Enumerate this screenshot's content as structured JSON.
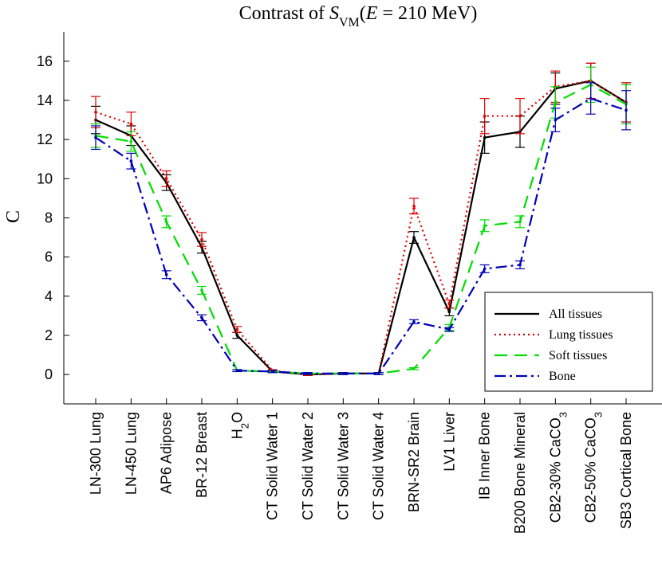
{
  "chart_data": {
    "type": "line",
    "title": {
      "prefix": "Contrast of ",
      "symbol": "S",
      "subscript": "VM",
      "open": "(",
      "var": "E",
      "eq": " = 210 MeV)"
    },
    "xlabel": "",
    "ylabel": "C",
    "ylim": [
      -1.5,
      17.5
    ],
    "yticks": [
      0,
      2,
      4,
      6,
      8,
      10,
      12,
      14,
      16
    ],
    "grid": false,
    "legend_position": "bottom-right",
    "categories": [
      {
        "text": "LN-300 Lung"
      },
      {
        "text": "LN-450 Lung"
      },
      {
        "text": "AP6 Adipose"
      },
      {
        "text": "BR-12 Breast"
      },
      {
        "text": "H",
        "sub": "2",
        "after": "O"
      },
      {
        "text": "CT Solid Water 1"
      },
      {
        "text": "CT Solid Water 2"
      },
      {
        "text": "CT Solid Water 3"
      },
      {
        "text": "CT Solid Water 4"
      },
      {
        "text": "BRN-SR2 Brain"
      },
      {
        "text": "LV1 Liver"
      },
      {
        "text": "IB Inner Bone"
      },
      {
        "text": "B200 Bone Mineral"
      },
      {
        "text": "CB2-30% CaCO",
        "sub": "3"
      },
      {
        "text": "CB2-50% CaCO",
        "sub": "3"
      },
      {
        "text": "SB3 Cortical Bone"
      }
    ],
    "series": [
      {
        "name": "All tissues",
        "color": "#000000",
        "dash": "",
        "values": [
          13.0,
          12.2,
          9.8,
          6.5,
          2.0,
          0.15,
          0.0,
          0.05,
          0.05,
          7.0,
          3.2,
          12.1,
          12.4,
          14.6,
          15.0,
          13.9
        ],
        "errors": [
          0.7,
          0.5,
          0.4,
          0.3,
          0.15,
          0.05,
          0.05,
          0.05,
          0.05,
          0.3,
          0.2,
          0.8,
          0.8,
          0.8,
          0.9,
          1.0
        ]
      },
      {
        "name": "Lung tissues",
        "color": "#e00000",
        "dash": "2,4",
        "values": [
          13.4,
          12.8,
          10.0,
          6.9,
          2.3,
          0.2,
          0.0,
          0.05,
          0.05,
          8.6,
          3.6,
          13.2,
          13.2,
          14.7,
          15.0,
          13.9
        ],
        "errors": [
          0.8,
          0.6,
          0.4,
          0.35,
          0.15,
          0.05,
          0.05,
          0.05,
          0.05,
          0.4,
          0.2,
          0.9,
          0.9,
          0.8,
          0.9,
          1.0
        ]
      },
      {
        "name": "Soft tissues",
        "color": "#00dd00",
        "dash": "16,9",
        "values": [
          12.2,
          11.9,
          7.8,
          4.3,
          0.2,
          0.15,
          0.05,
          0.05,
          0.05,
          0.3,
          2.4,
          7.6,
          7.8,
          13.9,
          14.8,
          13.8
        ],
        "errors": [
          0.6,
          0.5,
          0.3,
          0.2,
          0.05,
          0.05,
          0.05,
          0.05,
          0.05,
          0.05,
          0.15,
          0.3,
          0.3,
          0.8,
          0.9,
          1.0
        ]
      },
      {
        "name": "Bone",
        "color": "#0000b8",
        "dash": "14,5,3,5",
        "values": [
          12.1,
          10.9,
          5.1,
          2.9,
          0.2,
          0.15,
          0.05,
          0.05,
          0.05,
          2.7,
          2.3,
          5.4,
          5.6,
          13.0,
          14.1,
          13.5
        ],
        "errors": [
          0.6,
          0.4,
          0.2,
          0.15,
          0.05,
          0.05,
          0.05,
          0.05,
          0.05,
          0.1,
          0.1,
          0.2,
          0.2,
          0.6,
          0.8,
          1.0
        ]
      }
    ]
  }
}
